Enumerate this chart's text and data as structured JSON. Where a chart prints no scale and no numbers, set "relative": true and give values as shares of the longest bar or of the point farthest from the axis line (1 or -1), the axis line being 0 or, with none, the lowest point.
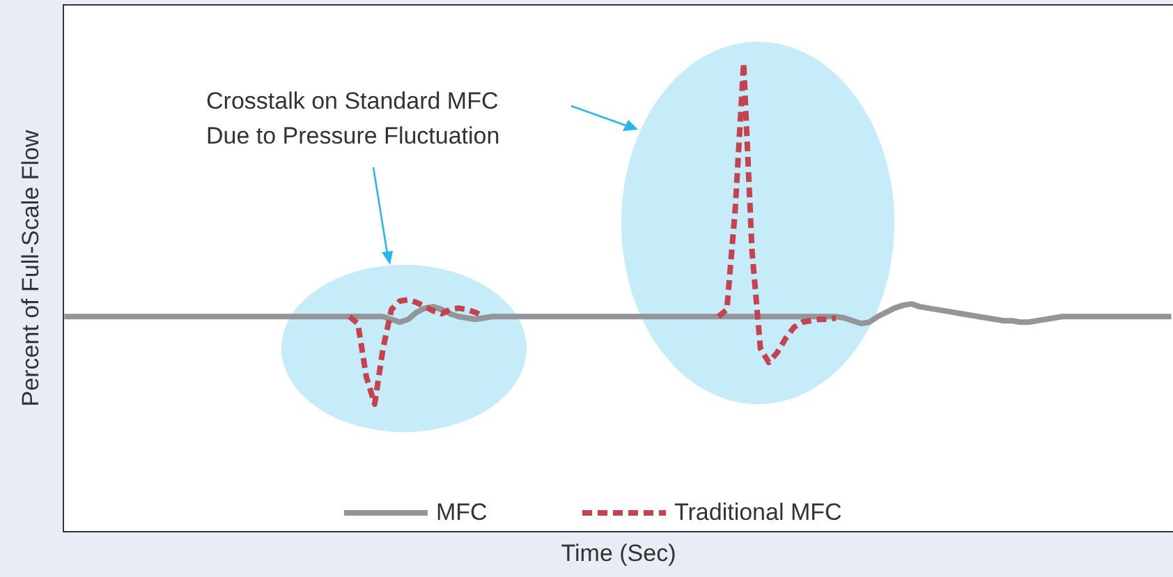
{
  "chart_data": {
    "type": "line",
    "relative": true,
    "xlabel": "Time (Sec)",
    "ylabel": "Percent of Full-Scale Flow",
    "tick_labels": false,
    "legend": "bottom",
    "annotations": [
      "Crosstalk on Standard MFC\nDue to Pressure Fluctuation"
    ],
    "categories": [
      null,
      null,
      null,
      null,
      null,
      null,
      null,
      null,
      null,
      null,
      null,
      null,
      null,
      null,
      null,
      null,
      null,
      null,
      null,
      null,
      null,
      null,
      null,
      null,
      null,
      null,
      null,
      null,
      null,
      null,
      null,
      null,
      null,
      null,
      null,
      null,
      null,
      null,
      null,
      null,
      null,
      null,
      null,
      null,
      null,
      null,
      null,
      null,
      null,
      null,
      null,
      null,
      null,
      null,
      null,
      null,
      null,
      null,
      null,
      null,
      null,
      null,
      null,
      null,
      null,
      null,
      null,
      null,
      null,
      null,
      null,
      null,
      null,
      null,
      null,
      null,
      null,
      null,
      null,
      null,
      null,
      null,
      null,
      null,
      null,
      null,
      null,
      null,
      null,
      null,
      null,
      null,
      null,
      null,
      null,
      null,
      null,
      null,
      null,
      null,
      null,
      null,
      null,
      null,
      null,
      null,
      null,
      null,
      null,
      null,
      null,
      null,
      null,
      null,
      null,
      null,
      null,
      null,
      null,
      null,
      null,
      null,
      null,
      null,
      null,
      null,
      null,
      null,
      null,
      null,
      null,
      null,
      null
    ],
    "series": [
      {
        "name": "MFC",
        "color": "#939598",
        "line_style": "solid",
        "values": [
          0.458,
          0.458,
          0.458,
          0.458,
          0.458,
          0.458,
          0.458,
          0.458,
          0.458,
          0.458,
          0.458,
          0.458,
          0.458,
          0.458,
          0.458,
          0.458,
          0.458,
          0.458,
          0.458,
          0.458,
          0.458,
          0.458,
          0.458,
          0.458,
          0.458,
          0.458,
          0.458,
          0.458,
          0.458,
          0.458,
          0.458,
          0.458,
          0.458,
          0.458,
          0.458,
          0.458,
          0.458,
          0.458,
          0.458,
          0.452,
          0.446,
          0.452,
          0.467,
          0.476,
          0.479,
          0.473,
          0.464,
          0.458,
          0.455,
          0.452,
          0.455,
          0.458,
          0.458,
          0.458,
          0.458,
          0.458,
          0.458,
          0.458,
          0.458,
          0.458,
          0.458,
          0.458,
          0.458,
          0.458,
          0.458,
          0.458,
          0.458,
          0.458,
          0.458,
          0.458,
          0.458,
          0.458,
          0.458,
          0.458,
          0.458,
          0.458,
          0.458,
          0.458,
          0.458,
          0.458,
          0.458,
          0.458,
          0.458,
          0.458,
          0.458,
          0.458,
          0.458,
          0.458,
          0.458,
          0.458,
          0.458,
          0.458,
          0.458,
          0.455,
          0.449,
          0.443,
          0.446,
          0.458,
          0.467,
          0.476,
          0.482,
          0.485,
          0.479,
          0.476,
          0.473,
          0.47,
          0.467,
          0.464,
          0.461,
          0.458,
          0.455,
          0.452,
          0.449,
          0.449,
          0.446,
          0.446,
          0.449,
          0.452,
          0.455,
          0.458,
          0.458,
          0.458,
          0.458,
          0.458,
          0.458,
          0.458,
          0.458,
          0.458,
          0.458,
          0.458,
          0.458,
          0.458,
          0.458
        ]
      },
      {
        "name": "Traditional MFC",
        "color": "#c4434f",
        "line_style": "dashed",
        "values": [
          null,
          null,
          null,
          null,
          null,
          null,
          null,
          null,
          null,
          null,
          null,
          null,
          null,
          null,
          null,
          null,
          null,
          null,
          null,
          null,
          null,
          null,
          null,
          null,
          null,
          null,
          null,
          null,
          null,
          null,
          null,
          null,
          null,
          null,
          0.458,
          0.443,
          0.33,
          0.271,
          0.39,
          0.473,
          0.491,
          0.494,
          0.488,
          0.479,
          0.47,
          0.464,
          0.473,
          0.476,
          0.473,
          0.467,
          0.458,
          null,
          null,
          null,
          null,
          null,
          null,
          null,
          null,
          null,
          null,
          null,
          null,
          null,
          null,
          null,
          null,
          null,
          null,
          null,
          null,
          null,
          null,
          null,
          null,
          null,
          null,
          null,
          0.458,
          0.473,
          0.688,
          1,
          0.598,
          0.39,
          0.36,
          0.381,
          0.411,
          0.435,
          0.446,
          0.449,
          0.452,
          0.452,
          0.455,
          null,
          null,
          null,
          null,
          null,
          null,
          null,
          null,
          null,
          null,
          null,
          null,
          null,
          null,
          null,
          null,
          null,
          null,
          null,
          null,
          null,
          null,
          null,
          null,
          null,
          null,
          null,
          null,
          null,
          null,
          null,
          null,
          null,
          null,
          null,
          null,
          null,
          null,
          null,
          null
        ]
      }
    ]
  }
}
